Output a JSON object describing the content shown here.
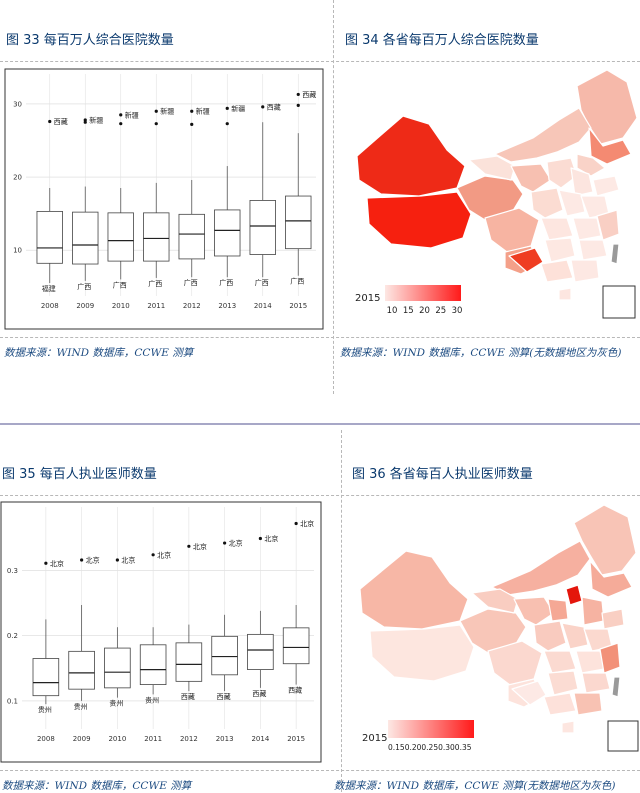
{
  "fig33": {
    "title": "图 33  每百万人综合医院数量",
    "source": "数据来源：WIND 数据库，CCWE 测算",
    "chart_data": {
      "type": "box",
      "categories": [
        "2008",
        "2009",
        "2010",
        "2011",
        "2012",
        "2013",
        "2014",
        "2015"
      ],
      "y_ticks": [
        10,
        20,
        30
      ],
      "ylim": [
        4,
        33
      ],
      "boxes": [
        {
          "whisker_low": 5.5,
          "q1": 8.2,
          "median": 10.3,
          "q3": 15.3,
          "whisker_high": 18.5
        },
        {
          "whisker_low": 5.8,
          "q1": 8.1,
          "median": 10.7,
          "q3": 15.2,
          "whisker_high": 18.7
        },
        {
          "whisker_low": 6.0,
          "q1": 8.5,
          "median": 11.3,
          "q3": 15.1,
          "whisker_high": 18.5
        },
        {
          "whisker_low": 6.2,
          "q1": 8.5,
          "median": 11.6,
          "q3": 15.1,
          "whisker_high": 19.2
        },
        {
          "whisker_low": 6.3,
          "q1": 8.8,
          "median": 12.2,
          "q3": 14.9,
          "whisker_high": 19.6
        },
        {
          "whisker_low": 6.3,
          "q1": 9.2,
          "median": 12.7,
          "q3": 15.5,
          "whisker_high": 21.5
        },
        {
          "whisker_low": 6.3,
          "q1": 9.4,
          "median": 13.3,
          "q3": 16.8,
          "whisker_high": 27.5
        },
        {
          "whisker_low": 6.5,
          "q1": 10.2,
          "median": 14.0,
          "q3": 17.4,
          "whisker_high": 26.0
        }
      ],
      "outliers": [
        {
          "x": "2008",
          "y": 27.6,
          "label": "西藏"
        },
        {
          "x": "2009",
          "y": 27.8,
          "label": "新疆"
        },
        {
          "x": "2009",
          "y": 27.5,
          "label": ""
        },
        {
          "x": "2010",
          "y": 28.5,
          "label": "新疆"
        },
        {
          "x": "2010",
          "y": 27.3,
          "label": ""
        },
        {
          "x": "2011",
          "y": 29.0,
          "label": "新疆"
        },
        {
          "x": "2011",
          "y": 27.3,
          "label": ""
        },
        {
          "x": "2012",
          "y": 29.0,
          "label": "新疆"
        },
        {
          "x": "2012",
          "y": 27.2,
          "label": ""
        },
        {
          "x": "2013",
          "y": 29.4,
          "label": "新疆"
        },
        {
          "x": "2013",
          "y": 27.3,
          "label": ""
        },
        {
          "x": "2014",
          "y": 29.6,
          "label": "西藏"
        },
        {
          "x": "2015",
          "y": 31.3,
          "label": "西藏"
        },
        {
          "x": "2015",
          "y": 29.8,
          "label": ""
        }
      ],
      "low_labels": [
        "福建",
        "广西",
        "广西",
        "广西",
        "广西",
        "广西",
        "广西",
        "广西"
      ]
    }
  },
  "fig34": {
    "title": "图 34  各省每百万人综合医院数量",
    "source": "数据来源：WIND 数据库，CCWE 测算(无数据地区为灰色)",
    "legend": {
      "year": "2015",
      "ticks": [
        "10",
        "15",
        "20",
        "25",
        "30"
      ],
      "color_low": "#fde8e4",
      "color_high": "#ff1a1a"
    }
  },
  "fig35": {
    "title": "图 35  每百人执业医师数量",
    "source": "数据来源：WIND 数据库，CCWE 测算",
    "chart_data": {
      "type": "box",
      "categories": [
        "2008",
        "2009",
        "2010",
        "2011",
        "2012",
        "2013",
        "2014",
        "2015"
      ],
      "y_ticks": [
        0.1,
        0.2,
        0.3
      ],
      "ylim": [
        0.06,
        0.385
      ],
      "boxes": [
        {
          "whisker_low": 0.095,
          "q1": 0.108,
          "median": 0.128,
          "q3": 0.165,
          "whisker_high": 0.225
        },
        {
          "whisker_low": 0.1,
          "q1": 0.118,
          "median": 0.143,
          "q3": 0.176,
          "whisker_high": 0.247
        },
        {
          "whisker_low": 0.105,
          "q1": 0.12,
          "median": 0.144,
          "q3": 0.181,
          "whisker_high": 0.213
        },
        {
          "whisker_low": 0.11,
          "q1": 0.125,
          "median": 0.148,
          "q3": 0.186,
          "whisker_high": 0.213
        },
        {
          "whisker_low": 0.115,
          "q1": 0.13,
          "median": 0.156,
          "q3": 0.189,
          "whisker_high": 0.217
        },
        {
          "whisker_low": 0.115,
          "q1": 0.14,
          "median": 0.168,
          "q3": 0.199,
          "whisker_high": 0.232
        },
        {
          "whisker_low": 0.12,
          "q1": 0.148,
          "median": 0.178,
          "q3": 0.202,
          "whisker_high": 0.238
        },
        {
          "whisker_low": 0.125,
          "q1": 0.157,
          "median": 0.182,
          "q3": 0.212,
          "whisker_high": 0.247
        }
      ],
      "outliers": [
        {
          "x": "2008",
          "y": 0.311,
          "label": "北京"
        },
        {
          "x": "2009",
          "y": 0.316,
          "label": "北京"
        },
        {
          "x": "2010",
          "y": 0.316,
          "label": "北京"
        },
        {
          "x": "2011",
          "y": 0.324,
          "label": "北京"
        },
        {
          "x": "2012",
          "y": 0.337,
          "label": "北京"
        },
        {
          "x": "2013",
          "y": 0.342,
          "label": "北京"
        },
        {
          "x": "2014",
          "y": 0.349,
          "label": "北京"
        },
        {
          "x": "2015",
          "y": 0.372,
          "label": "北京"
        }
      ],
      "low_labels": [
        "贵州",
        "贵州",
        "贵州",
        "贵州",
        "西藏",
        "西藏",
        "西藏",
        "西藏"
      ]
    }
  },
  "fig36": {
    "title": "图 36  各省每百人执业医师数量",
    "source": "数据来源：WIND 数据库，CCWE 测算(无数据地区为灰色)",
    "legend": {
      "year": "2015",
      "ticks_text": "0.150.200.250.300.35",
      "color_low": "#fde8e4",
      "color_high": "#ff1a1a"
    }
  }
}
